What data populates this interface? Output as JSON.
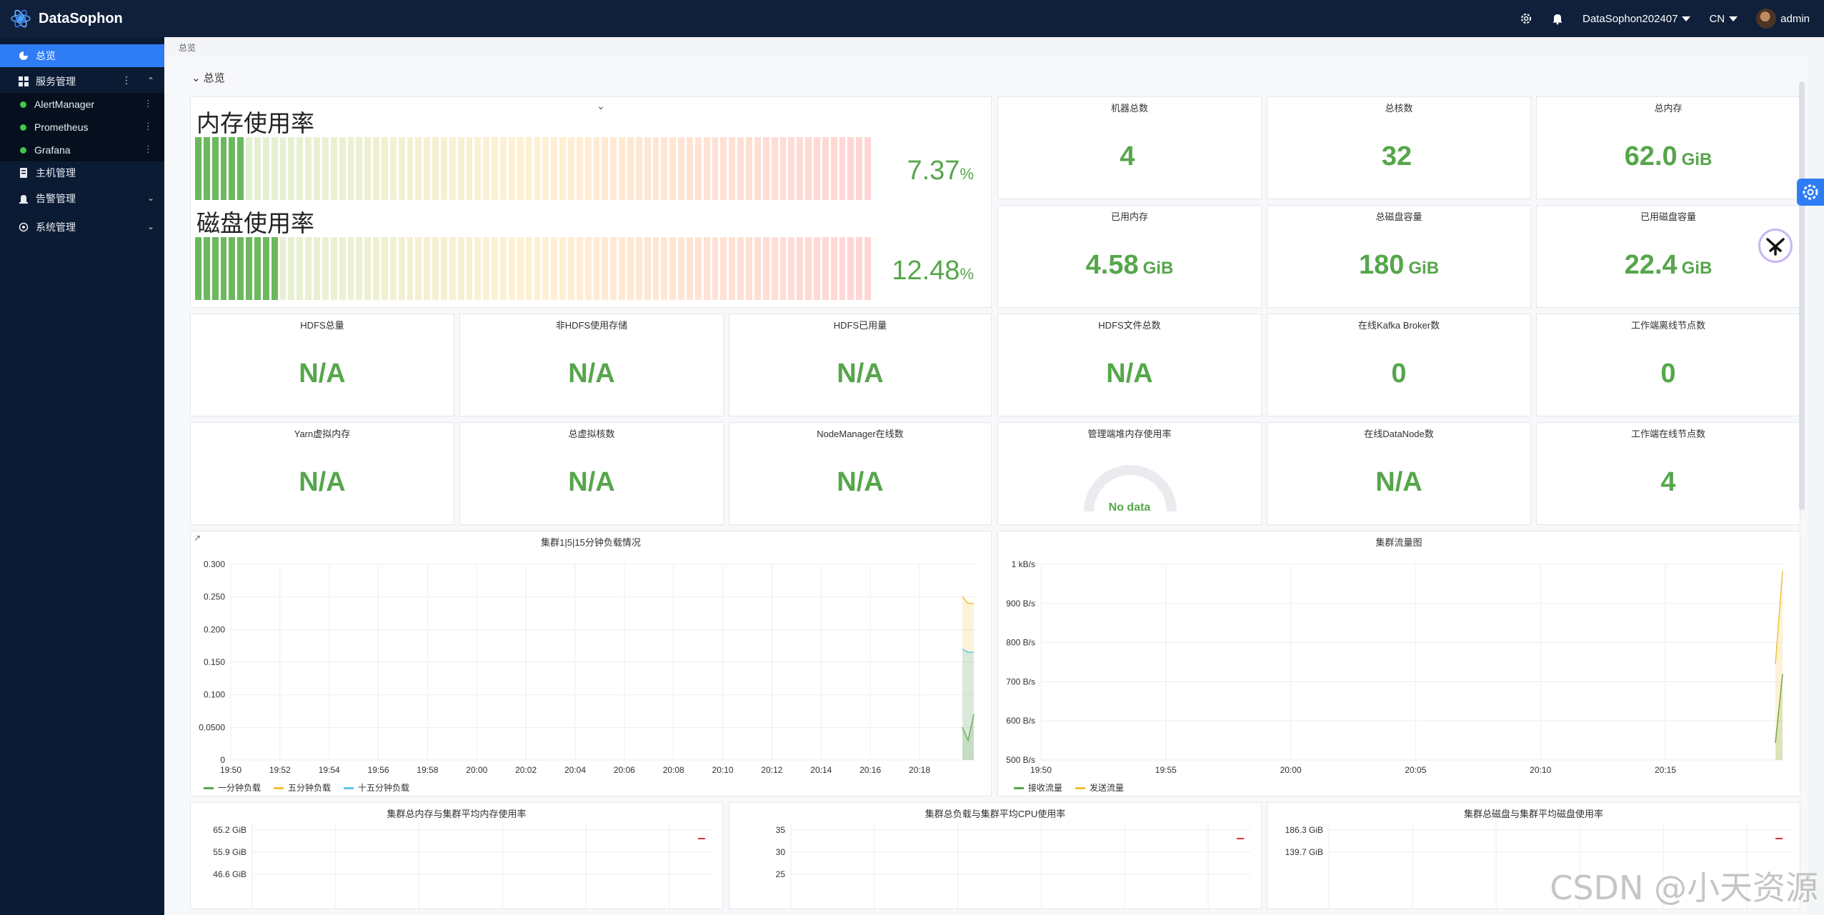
{
  "app": {
    "name": "DataSophon"
  },
  "topbar": {
    "cluster": "DataSophon202407",
    "lang": "CN",
    "user": "admin"
  },
  "sidebar": {
    "overview": "总览",
    "service_mgmt": "服务管理",
    "services": [
      "AlertManager",
      "Prometheus",
      "Grafana"
    ],
    "host_mgmt": "主机管理",
    "alert_mgmt": "告警管理",
    "system_mgmt": "系统管理"
  },
  "breadcrumb": "总览",
  "section_title": "总览",
  "memory_bar": {
    "title": "内存使用率",
    "value": "7.37",
    "unit": "%",
    "fill": 0.0737
  },
  "disk_bar": {
    "title": "磁盘使用率",
    "value": "12.48",
    "unit": "%",
    "fill": 0.1248
  },
  "stats_top": [
    {
      "title": "机器总数",
      "value": "4",
      "unit": ""
    },
    {
      "title": "总核数",
      "value": "32",
      "unit": ""
    },
    {
      "title": "总内存",
      "value": "62.0",
      "unit": "GiB"
    },
    {
      "title": "已用内存",
      "value": "4.58",
      "unit": "GiB"
    },
    {
      "title": "总磁盘容量",
      "value": "180",
      "unit": "GiB"
    },
    {
      "title": "已用磁盘容量",
      "value": "22.4",
      "unit": "GiB"
    }
  ],
  "stats_row3": [
    {
      "title": "HDFS总量",
      "value": "N/A"
    },
    {
      "title": "非HDFS使用存储",
      "value": "N/A"
    },
    {
      "title": "HDFS已用量",
      "value": "N/A"
    },
    {
      "title": "HDFS文件总数",
      "value": "N/A"
    },
    {
      "title": "在线Kafka Broker数",
      "value": "0"
    },
    {
      "title": "工作端离线节点数",
      "value": "0"
    }
  ],
  "stats_row4": [
    {
      "title": "Yarn虚拟内存",
      "value": "N/A"
    },
    {
      "title": "总虚拟核数",
      "value": "N/A"
    },
    {
      "title": "NodeManager在线数",
      "value": "N/A"
    },
    {
      "title": "管理端堆内存使用率",
      "value": "No data"
    },
    {
      "title": "在线DataNode数",
      "value": "N/A"
    },
    {
      "title": "工作端在线节点数",
      "value": "4"
    }
  ],
  "colors": {
    "green": "#56a64b",
    "yellow": "#f2c037",
    "blue": "#5ac8e8",
    "red": "#e02f44"
  },
  "chart_data": [
    {
      "type": "line",
      "title": "集群1|5|15分钟负载情况",
      "x": [
        "19:50",
        "19:52",
        "19:54",
        "19:56",
        "19:58",
        "20:00",
        "20:02",
        "20:04",
        "20:06",
        "20:08",
        "20:10",
        "20:12",
        "20:14",
        "20:16",
        "20:18"
      ],
      "y_ticks": [
        "0",
        "0.0500",
        "0.100",
        "0.150",
        "0.200",
        "0.250",
        "0.300"
      ],
      "ylim": [
        0,
        0.3
      ],
      "series": [
        {
          "name": "一分钟负载",
          "color": "#56a64b",
          "points": [
            [
              0.0,
              0.05
            ],
            [
              0.5,
              0.03
            ],
            [
              1.0,
              0.07
            ]
          ]
        },
        {
          "name": "五分钟负载",
          "color": "#f2c037",
          "points": [
            [
              0.0,
              0.25
            ],
            [
              0.5,
              0.24
            ],
            [
              1.0,
              0.24
            ]
          ]
        },
        {
          "name": "十五分钟负载",
          "color": "#5ac8e8",
          "points": [
            [
              0.0,
              0.17
            ],
            [
              0.5,
              0.165
            ],
            [
              1.0,
              0.165
            ]
          ]
        }
      ]
    },
    {
      "type": "line",
      "title": "集群流量图",
      "x": [
        "19:50",
        "19:55",
        "20:00",
        "20:05",
        "20:10",
        "20:15"
      ],
      "y_ticks": [
        "500 B/s",
        "600 B/s",
        "700 B/s",
        "800 B/s",
        "900 B/s",
        "1 kB/s"
      ],
      "ylim": [
        450,
        1020
      ],
      "series": [
        {
          "name": "接收流量",
          "color": "#56a64b",
          "points": [
            [
              0.0,
              500
            ],
            [
              1.0,
              700
            ]
          ]
        },
        {
          "name": "发送流量",
          "color": "#f2c037",
          "points": [
            [
              0.0,
              730
            ],
            [
              1.0,
              1000
            ]
          ]
        }
      ]
    },
    {
      "type": "line",
      "title": "集群总内存与集群平均内存使用率",
      "y_ticks": [
        "46.6 GiB",
        "55.9 GiB",
        "65.2 GiB"
      ]
    },
    {
      "type": "line",
      "title": "集群总负载与集群平均CPU使用率",
      "y_ticks": [
        "25",
        "30",
        "35"
      ]
    },
    {
      "type": "line",
      "title": "集群总磁盘与集群平均磁盘使用率",
      "y_ticks": [
        "139.7 GiB",
        "186.3 GiB"
      ]
    }
  ],
  "watermark": "CSDN @小天资源"
}
